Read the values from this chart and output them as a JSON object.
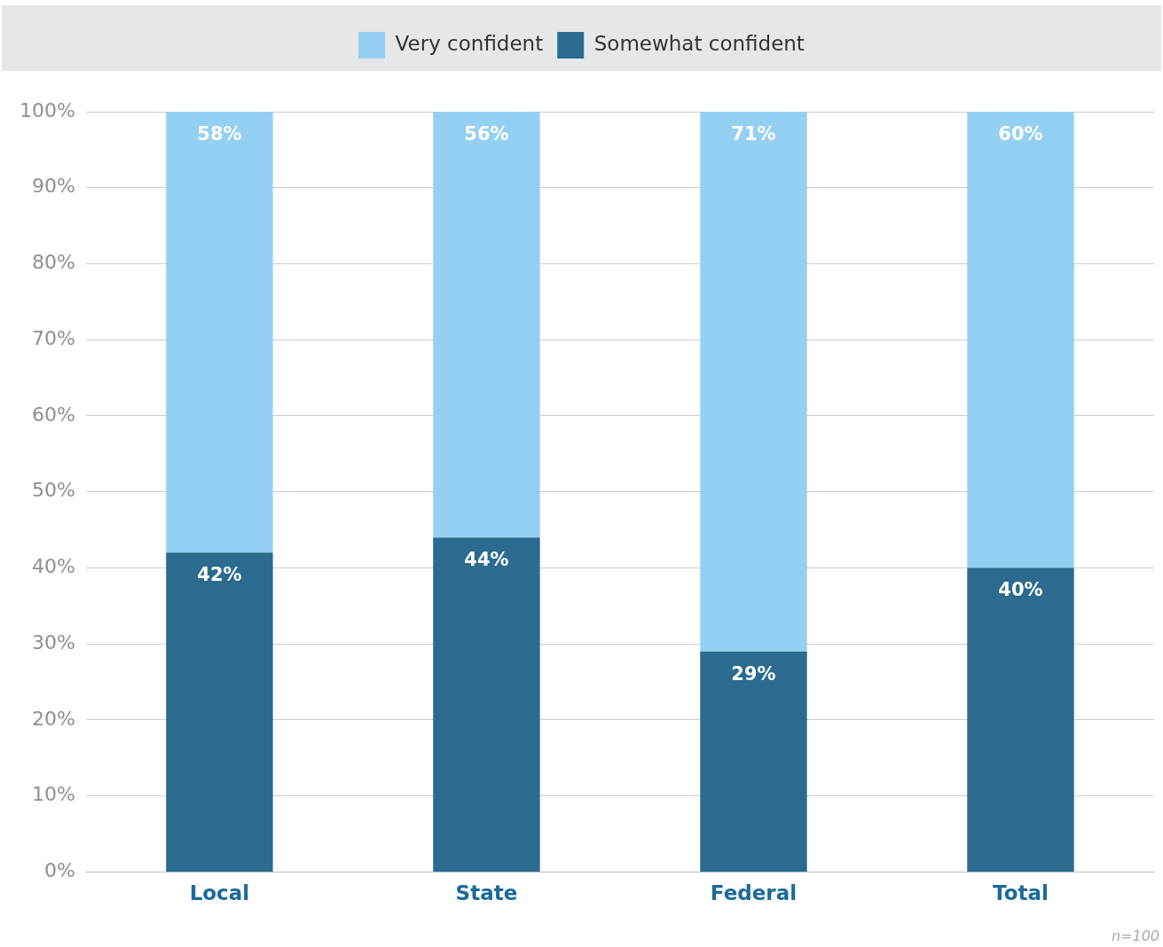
{
  "chart_data": {
    "type": "bar",
    "stacked": true,
    "categories": [
      "Local",
      "State",
      "Federal",
      "Total"
    ],
    "series": [
      {
        "name": "Somewhat confident",
        "color": "#2b6b8f",
        "values": [
          42,
          44,
          29,
          40
        ],
        "value_labels": [
          "42%",
          "44%",
          "29%",
          "40%"
        ]
      },
      {
        "name": "Very confident",
        "color": "#94d0f1",
        "values": [
          58,
          56,
          71,
          60
        ],
        "value_labels": [
          "58%",
          "56%",
          "71%",
          "60%"
        ]
      }
    ],
    "ylim": [
      0,
      100
    ],
    "yticks": [
      {
        "value": 0,
        "label": "0%"
      },
      {
        "value": 10,
        "label": "10%"
      },
      {
        "value": 20,
        "label": "20%"
      },
      {
        "value": 30,
        "label": "30%"
      },
      {
        "value": 40,
        "label": "40%"
      },
      {
        "value": 50,
        "label": "50%"
      },
      {
        "value": 60,
        "label": "60%"
      },
      {
        "value": 70,
        "label": "70%"
      },
      {
        "value": 80,
        "label": "80%"
      },
      {
        "value": 90,
        "label": "90%"
      },
      {
        "value": 100,
        "label": "100%"
      }
    ],
    "grid": "y",
    "legend": "top",
    "annotations": [
      "n=100"
    ]
  }
}
